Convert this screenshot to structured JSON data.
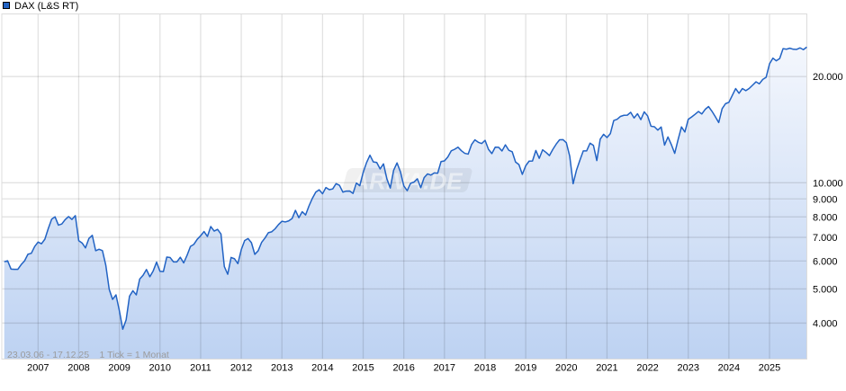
{
  "header": {
    "title": "DAX (L&S RT)",
    "legend_color": "#2263c4",
    "legend_border_color": "#000000"
  },
  "footer": {
    "date_range": "23.03.06 - 17.12.25",
    "tick_info": "1 Tick = 1 Monat"
  },
  "watermark": {
    "text": "ARIVA.DE"
  },
  "colors": {
    "line": "#2263c4",
    "fill_top": "#f4f7fd",
    "fill_bottom": "#bdd2f2",
    "grid": "rgba(0,0,0,0.115)",
    "plot_border": "#dcdcdc",
    "axis_text": "#000000",
    "footer_text": "#9b9b9b",
    "watermark_badge": "rgba(60,60,60,0.08)",
    "watermark_text": "rgba(255,255,255,0.52)"
  },
  "chart_data": {
    "type": "area",
    "title": "DAX (L&S RT)",
    "x_start_label": "23.03.06",
    "x_end_label": "17.12.25",
    "tick_interval": "1 month",
    "y_scale": "log",
    "legend_position": "top-left",
    "grid": true,
    "x_year_labels": [
      "2007",
      "2008",
      "2009",
      "2010",
      "2011",
      "2012",
      "2013",
      "2014",
      "2015",
      "2016",
      "2017",
      "2018",
      "2019",
      "2020",
      "2021",
      "2022",
      "2023",
      "2024",
      "2025"
    ],
    "y_ticks": [
      {
        "label": "4.000",
        "value": 4000
      },
      {
        "label": "5.000",
        "value": 5000
      },
      {
        "label": "6.000",
        "value": 6000
      },
      {
        "label": "7.000",
        "value": 7000
      },
      {
        "label": "8.000",
        "value": 8000
      },
      {
        "label": "9.000",
        "value": 9000
      },
      {
        "label": "10.000",
        "value": 10000
      },
      {
        "label": "20.000",
        "value": 20000
      }
    ],
    "ylim": [
      3160,
      30100
    ],
    "series": [
      {
        "name": "DAX (L&S RT)",
        "first_month": "2006-03",
        "last_month": "2025-12",
        "values": [
          5970,
          6009,
          5692,
          5683,
          5682,
          5859,
          6004,
          6269,
          6309,
          6597,
          6789,
          6715,
          6917,
          7409,
          7883,
          8007,
          7584,
          7638,
          7861,
          8019,
          7870,
          8067,
          6851,
          6748,
          6535,
          6948,
          7096,
          6418,
          6479,
          6422,
          5831,
          4988,
          4669,
          4810,
          4338,
          3844,
          4085,
          4769,
          4941,
          4809,
          5332,
          5465,
          5675,
          5414,
          5626,
          5957,
          5609,
          5598,
          6154,
          6136,
          5964,
          5966,
          6148,
          5925,
          6229,
          6601,
          6688,
          6914,
          7077,
          7272,
          7041,
          7514,
          7294,
          7376,
          7159,
          5785,
          5502,
          6141,
          6088,
          5898,
          6459,
          6856,
          6947,
          6761,
          6264,
          6416,
          6772,
          6971,
          7216,
          7260,
          7405,
          7612,
          7776,
          7741,
          7795,
          7914,
          8349,
          7959,
          8276,
          8103,
          8594,
          9034,
          9405,
          9552,
          9306,
          9692,
          9556,
          9603,
          9943,
          9833,
          9407,
          9470,
          9474,
          9327,
          9981,
          9806,
          10694,
          11402,
          11966,
          11454,
          11414,
          10945,
          11309,
          10259,
          9660,
          10850,
          11382,
          10743,
          9798,
          9495,
          9966,
          10039,
          10263,
          9680,
          10337,
          10593,
          10511,
          10665,
          10640,
          11481,
          11535,
          11834,
          12313,
          12438,
          12615,
          12325,
          12118,
          12056,
          12829,
          13230,
          13024,
          12918,
          13189,
          12436,
          12097,
          12612,
          12605,
          12306,
          12806,
          12364,
          12247,
          11447,
          11257,
          10559,
          11173,
          11516,
          11526,
          12344,
          11727,
          12399,
          12189,
          11939,
          12428,
          12867,
          13236,
          13249,
          12982,
          11890,
          9936,
          10862,
          11587,
          12311,
          12313,
          12945,
          12761,
          11556,
          13291,
          13719,
          13432,
          13786,
          15008,
          15136,
          15421,
          15531,
          15544,
          15835,
          15261,
          15689,
          15100,
          15885,
          15471,
          14461,
          14415,
          14098,
          14388,
          12784,
          13484,
          12835,
          12114,
          13254,
          14397,
          13924,
          15128,
          15365,
          15629,
          15922,
          15664,
          16148,
          16447,
          15947,
          15387,
          14810,
          16215,
          16752,
          16904,
          17678,
          18492,
          17932,
          18498,
          18235,
          18509,
          18907,
          19325,
          19078,
          19626,
          19909,
          21732,
          22551,
          22163,
          22497,
          23997,
          23910,
          24066,
          23902,
          23881,
          24118,
          23836,
          24242
        ]
      }
    ]
  }
}
